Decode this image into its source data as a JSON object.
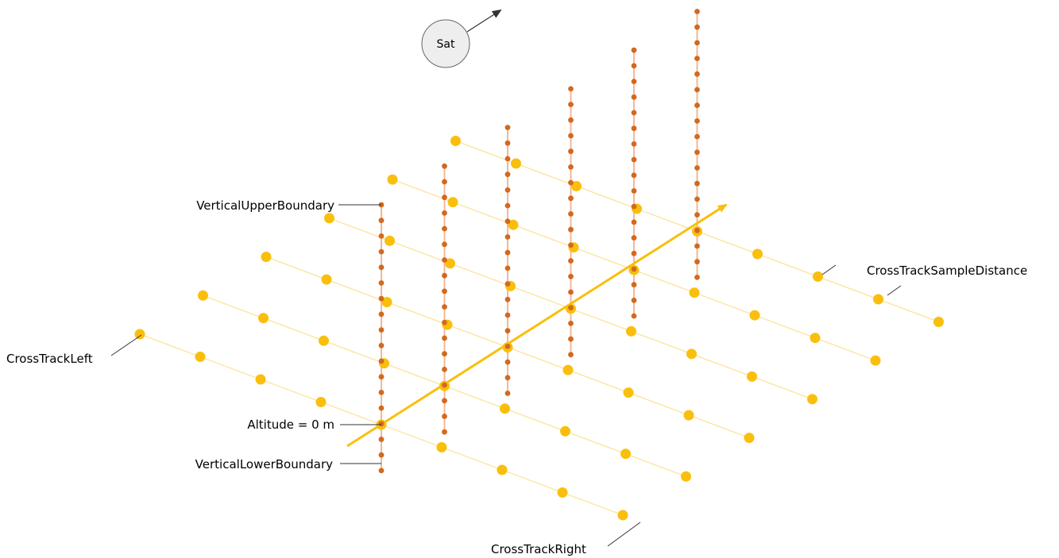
{
  "labels": {
    "satellite": "Sat",
    "vertical_upper_boundary": "VerticalUpperBoundary",
    "altitude": "Altitude = 0 m",
    "vertical_lower_boundary": "VerticalLowerBoundary",
    "cross_track_left": "CrossTrackLeft",
    "cross_track_right": "CrossTrackRight",
    "cross_track_sample_distance": "CrossTrackSampleDistance"
  },
  "colors": {
    "ground_sample": "#f9bf0c",
    "track_line": "#f9bf0c",
    "cross_track_line": "#fde6a8",
    "vertical_sample": "#d2691e",
    "vertical_line": "#f3b894",
    "satellite_fill": "#eeeeee",
    "leader_line": "#333333"
  },
  "grid": {
    "along_track_samples": 6,
    "cross_track_samples": 9,
    "vertical_samples": 18
  }
}
